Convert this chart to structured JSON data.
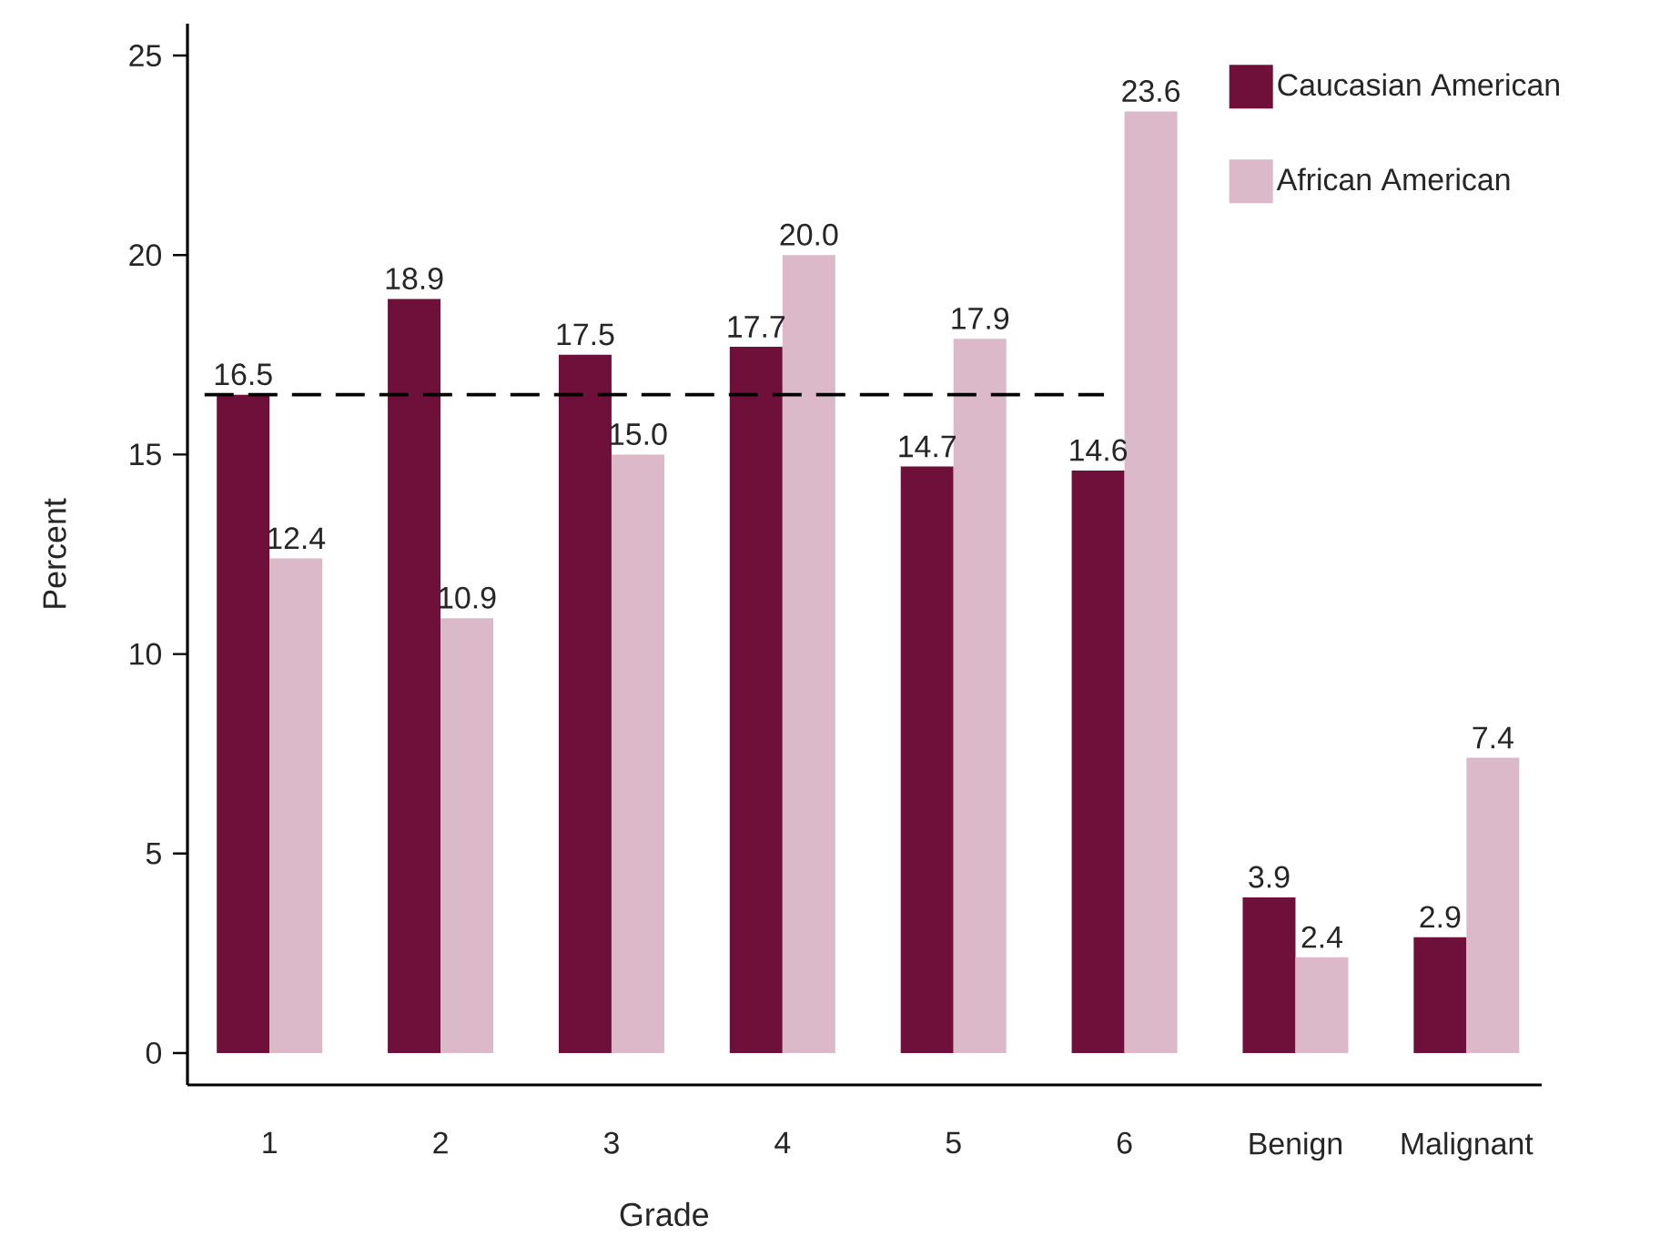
{
  "chart_data": {
    "type": "bar",
    "xlabel": "Grade",
    "ylabel": "Percent",
    "categories": [
      "1",
      "2",
      "3",
      "4",
      "5",
      "6",
      "Benign",
      "Malignant"
    ],
    "series": [
      {
        "name": "Caucasian American",
        "color": "#6e1039",
        "values": [
          16.5,
          18.9,
          17.5,
          17.7,
          14.7,
          14.6,
          3.9,
          2.9
        ],
        "value_labels": [
          "16.5",
          "18.9",
          "17.5",
          "17.7",
          "14.7",
          "14.6",
          "3.9",
          "2.9"
        ]
      },
      {
        "name": "African American",
        "color": "#dbb9c8",
        "values": [
          12.4,
          10.9,
          15.0,
          20.0,
          17.9,
          23.6,
          2.4,
          7.4
        ],
        "value_labels": [
          "12.4",
          "10.9",
          "15.0",
          "20.0",
          "17.9",
          "23.6",
          "2.4",
          "7.4"
        ]
      }
    ],
    "ylim": [
      -0.8,
      25.8
    ],
    "yticks": [
      0,
      5,
      10,
      15,
      20,
      25
    ],
    "ref_lines": [
      {
        "axis": "y",
        "value": 16.5,
        "line_style": "dashed"
      }
    ],
    "legend": "top right",
    "grid": false
  }
}
